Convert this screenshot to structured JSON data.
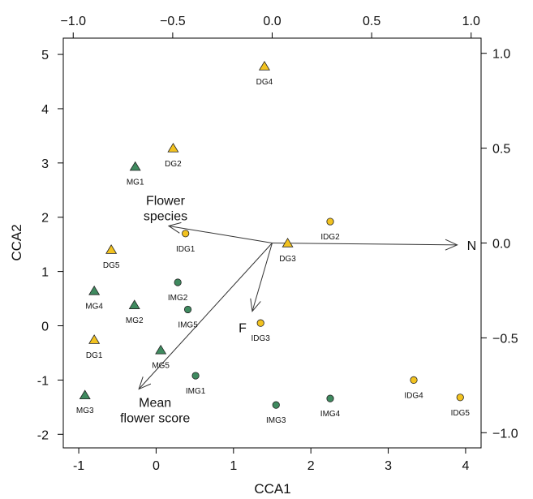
{
  "chart_data": {
    "type": "scatter",
    "title": "",
    "xlabel": "CCA1",
    "ylabel": "CCA2",
    "xlim": [
      -1.2,
      4.2
    ],
    "ylim": [
      -2.25,
      5.3
    ],
    "x_ticks": [
      -1,
      0,
      1,
      2,
      3,
      4
    ],
    "y_ticks": [
      -2,
      -1,
      0,
      1,
      2,
      3,
      4,
      5
    ],
    "biplot_axis_lim_x": [
      -1.05,
      1.05
    ],
    "biplot_axis_lim_y": [
      -1.08,
      1.08
    ],
    "top_ticks": [
      -1.0,
      -0.5,
      0.0,
      0.5,
      1.0
    ],
    "right_ticks": [
      -1.0,
      -0.5,
      0.0,
      0.5,
      1.0
    ],
    "top_tick_labels": [
      "−1.0",
      "−0.5",
      "0.0",
      "0.5",
      "1.0"
    ],
    "right_tick_labels": [
      "−1.0",
      "−0.5",
      "0.0",
      "0.5",
      "1.0"
    ],
    "grid": false,
    "groups": [
      {
        "name": "MG",
        "marker": "triangle",
        "color": "#3f8a5f",
        "points": [
          {
            "label": "MG1",
            "x": -0.27,
            "y": 2.93
          },
          {
            "label": "MG2",
            "x": -0.28,
            "y": 0.38
          },
          {
            "label": "MG3",
            "x": -0.92,
            "y": -1.28
          },
          {
            "label": "MG4",
            "x": -0.8,
            "y": 0.64
          },
          {
            "label": "MG5",
            "x": 0.06,
            "y": -0.45
          }
        ]
      },
      {
        "name": "DG",
        "marker": "triangle",
        "color": "#f2c21f",
        "points": [
          {
            "label": "DG1",
            "x": -0.8,
            "y": -0.26
          },
          {
            "label": "DG2",
            "x": 0.22,
            "y": 3.27
          },
          {
            "label": "DG3",
            "x": 1.7,
            "y": 1.52
          },
          {
            "label": "DG4",
            "x": 1.4,
            "y": 4.78
          },
          {
            "label": "DG5",
            "x": -0.58,
            "y": 1.4
          }
        ]
      },
      {
        "name": "IMG",
        "marker": "circle",
        "color": "#3f8a5f",
        "points": [
          {
            "label": "IMG1",
            "x": 0.51,
            "y": -0.92
          },
          {
            "label": "IMG2",
            "x": 0.28,
            "y": 0.8
          },
          {
            "label": "IMG3",
            "x": 1.55,
            "y": -1.46
          },
          {
            "label": "IMG4",
            "x": 2.25,
            "y": -1.34
          },
          {
            "label": "IMG5",
            "x": 0.41,
            "y": 0.3
          }
        ]
      },
      {
        "name": "IDG",
        "marker": "circle",
        "color": "#f2c21f",
        "points": [
          {
            "label": "IDG1",
            "x": 0.38,
            "y": 1.7
          },
          {
            "label": "IDG2",
            "x": 2.25,
            "y": 1.92
          },
          {
            "label": "IDG3",
            "x": 1.35,
            "y": 0.05
          },
          {
            "label": "IDG4",
            "x": 3.33,
            "y": -1.0
          },
          {
            "label": "IDG5",
            "x": 3.93,
            "y": -1.32
          }
        ]
      }
    ],
    "vectors": [
      {
        "name": "N",
        "lines": [
          "N"
        ],
        "x": 0.93,
        "y": -0.01
      },
      {
        "name": "Flower species",
        "lines": [
          "Flower",
          "species"
        ],
        "x": -0.52,
        "y": 0.09
      },
      {
        "name": "F",
        "lines": [
          "F"
        ],
        "x": -0.1,
        "y": -0.36
      },
      {
        "name": "Mean flower score",
        "lines": [
          "Mean",
          "flower score"
        ],
        "x": -0.67,
        "y": -0.77
      }
    ]
  }
}
